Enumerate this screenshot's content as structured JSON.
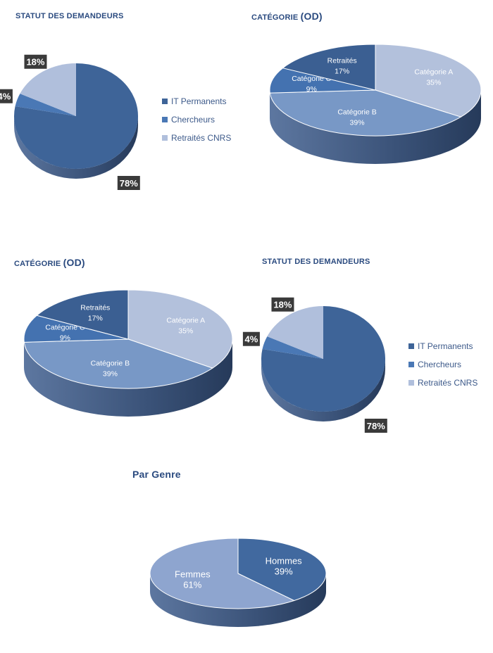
{
  "chart_data": [
    {
      "id": "statut-1",
      "type": "pie",
      "title": "STATUT DES DEMANDEURS",
      "categories": [
        "IT Permanents",
        "Chercheurs",
        "Retraités CNRS"
      ],
      "values": [
        78,
        4,
        18
      ],
      "labels": [
        "78%",
        "4%",
        "18%"
      ],
      "colors": [
        "#3e6498",
        "#4a78b5",
        "#b0bfdc"
      ],
      "legend": "right",
      "label_style": "dark-box-outside"
    },
    {
      "id": "categorie-1",
      "type": "pie",
      "title_small": "CATÉGORIE",
      "title_big": "(OD)",
      "categories": [
        "Catégorie A",
        "Catégorie B",
        "Catégorie C",
        "Retraités"
      ],
      "values": [
        35,
        39,
        9,
        17
      ],
      "labels": [
        "35%",
        "39%",
        "9%",
        "17%"
      ],
      "colors": [
        "#b3c1dc",
        "#7898c6",
        "#4472b0",
        "#3b5f92"
      ],
      "label_style": "inside"
    },
    {
      "id": "categorie-2",
      "type": "pie",
      "title_small": "CATÉGORIE",
      "title_big": "(OD)",
      "categories": [
        "Catégorie A",
        "Catégorie B",
        "Catégorie C",
        "Retraités"
      ],
      "values": [
        35,
        39,
        9,
        17
      ],
      "labels": [
        "35%",
        "39%",
        "9%",
        "17%"
      ],
      "colors": [
        "#b3c1dc",
        "#7898c6",
        "#4472b0",
        "#3b5f92"
      ],
      "label_style": "inside"
    },
    {
      "id": "statut-2",
      "type": "pie",
      "title": "STATUT DES DEMANDEURS",
      "categories": [
        "IT Permanents",
        "Chercheurs",
        "Retraités CNRS"
      ],
      "values": [
        78,
        4,
        18
      ],
      "labels": [
        "78%",
        "4%",
        "18%"
      ],
      "colors": [
        "#3e6498",
        "#4a78b5",
        "#b0bfdc"
      ],
      "legend": "right",
      "label_style": "dark-box-outside"
    },
    {
      "id": "genre",
      "type": "pie",
      "title": "Par Genre",
      "categories": [
        "Hommes",
        "Femmes"
      ],
      "values": [
        39,
        61
      ],
      "labels": [
        "39%",
        "61%"
      ],
      "colors": [
        "#41699f",
        "#8ea5cf"
      ],
      "label_style": "inside"
    }
  ]
}
